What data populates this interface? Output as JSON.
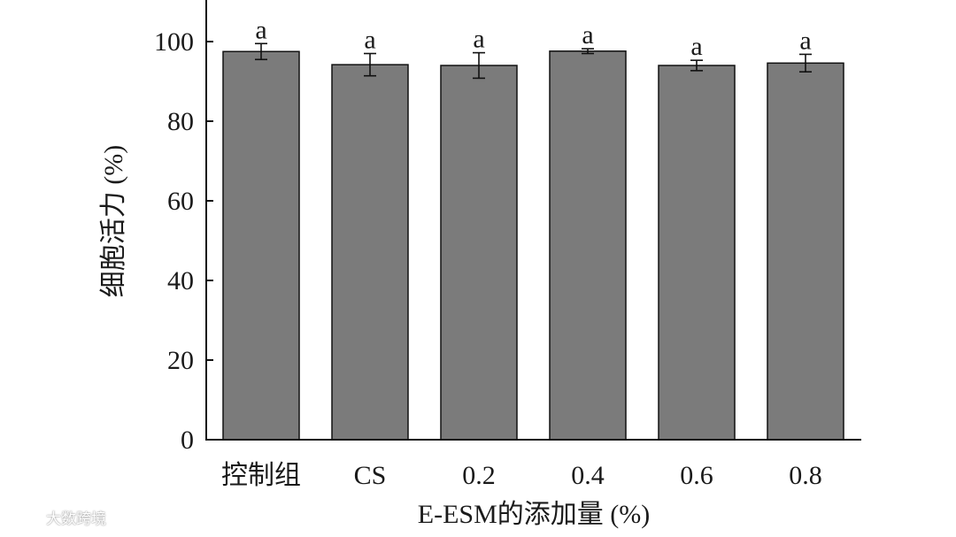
{
  "chart_data": {
    "type": "bar",
    "categories": [
      "控制组",
      "CS",
      "0.2",
      "0.4",
      "0.6",
      "0.8"
    ],
    "values": [
      97.5,
      94.2,
      94.0,
      97.6,
      94.0,
      94.6
    ],
    "errors": [
      2.0,
      2.8,
      3.2,
      0.6,
      1.3,
      2.2
    ],
    "significance": [
      "a",
      "a",
      "a",
      "a",
      "a",
      "a"
    ],
    "title": "",
    "xlabel": "E-ESM的添加量 (%)",
    "ylabel": "细胞活力 (%)",
    "ylim": [
      0,
      110
    ],
    "yticks": [
      0,
      20,
      40,
      60,
      80,
      100
    ],
    "grid": false,
    "bar_color": "#7b7b7b"
  },
  "watermark": {
    "text": "大数跨境",
    "icon": "watermark-logo-icon"
  }
}
